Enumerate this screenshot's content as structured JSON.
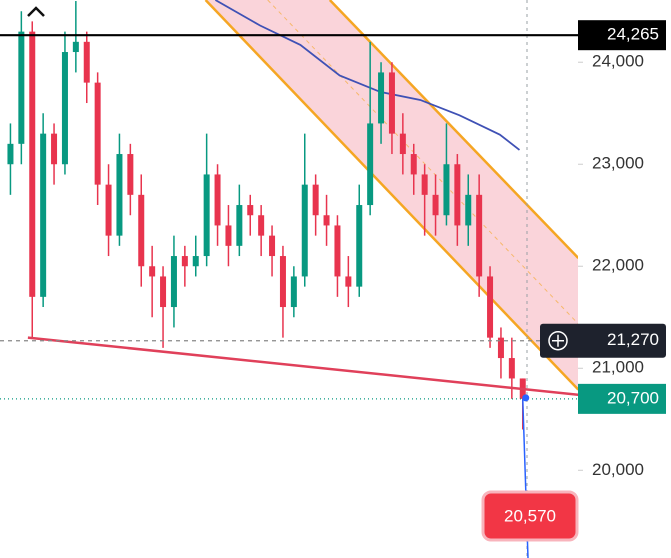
{
  "chart_data": {
    "type": "candlestick",
    "ylim": [
      19140,
      24610
    ],
    "yticks": [
      {
        "value": 20000,
        "label": "20,000"
      },
      {
        "value": 21000,
        "label": "21,000"
      },
      {
        "value": 22000,
        "label": "22,000"
      },
      {
        "value": 23000,
        "label": "23,000"
      },
      {
        "value": 24000,
        "label": "24,000"
      }
    ],
    "up_color": "#089981",
    "down_color": "#e8344e",
    "open": [
      23000,
      23200,
      24300,
      21700,
      23300,
      23000,
      24100,
      24200,
      23800,
      22800,
      22300,
      23100,
      22700,
      22000,
      21900,
      21600,
      22100,
      22000,
      22100,
      22900,
      22400,
      22200,
      22600,
      22500,
      22300,
      22100,
      21600,
      21900,
      22800,
      22500,
      22400,
      21900,
      21800,
      22600,
      23400,
      23900,
      23300,
      23100,
      22900,
      22700,
      22500,
      23000,
      22400,
      22700,
      21900,
      21300,
      21100,
      20900
    ],
    "high": [
      23400,
      24500,
      24400,
      23500,
      23400,
      24300,
      24600,
      24300,
      23900,
      23000,
      23300,
      23200,
      22900,
      22200,
      22000,
      22300,
      22200,
      22300,
      23300,
      23000,
      22600,
      22800,
      22700,
      22600,
      22400,
      22200,
      22000,
      23300,
      22900,
      22700,
      22500,
      22100,
      22800,
      24200,
      24000,
      24000,
      23500,
      23200,
      23000,
      22900,
      23400,
      23100,
      22900,
      22900,
      22000,
      21400,
      21300,
      20900
    ],
    "low": [
      22700,
      23000,
      21300,
      21600,
      22800,
      22900,
      23900,
      23600,
      22600,
      22100,
      22200,
      22500,
      21800,
      21500,
      21200,
      21400,
      21800,
      21900,
      22000,
      22200,
      22000,
      22100,
      22300,
      22100,
      21900,
      21300,
      21500,
      21800,
      22300,
      22200,
      21700,
      21600,
      21700,
      22500,
      23200,
      23100,
      22900,
      22700,
      22300,
      22300,
      22400,
      22200,
      22200,
      21700,
      21200,
      20900,
      20700,
      20400
    ],
    "close": [
      23200,
      24300,
      21700,
      23300,
      23000,
      24100,
      24200,
      23800,
      22800,
      22300,
      23100,
      22700,
      22000,
      21900,
      21600,
      22100,
      22000,
      22100,
      22900,
      22400,
      22200,
      22600,
      22500,
      22300,
      22100,
      21600,
      21900,
      22800,
      22500,
      22400,
      21900,
      21800,
      22600,
      23400,
      23900,
      23300,
      23100,
      22900,
      22700,
      22500,
      23000,
      22400,
      22700,
      21900,
      21300,
      21100,
      20900,
      20700
    ],
    "channel": {
      "color": "#f5a623",
      "fill": "#f9cdd3",
      "upper": {
        "x": [
          29.3,
          52.1
        ],
        "y": [
          24610,
          22080
        ]
      },
      "lower": {
        "x": [
          17.9,
          52.1
        ],
        "y": [
          24610,
          20790
        ]
      }
    },
    "moving_average": {
      "color": "#3f51b5",
      "x": [
        18.8,
        22.9,
        26.6,
        30.2,
        33.9,
        37.6,
        41.2,
        44.9,
        46.7
      ],
      "y": [
        24610,
        24360,
        24170,
        23870,
        23710,
        23630,
        23480,
        23290,
        23140
      ]
    },
    "support_line": {
      "color": "#e0405a",
      "x": [
        1.6,
        52.1
      ],
      "y": [
        21300,
        20740
      ]
    },
    "price_lines": [
      {
        "value": 24265,
        "label": "24,265",
        "color": "#000000",
        "style": "solid"
      },
      {
        "value": 21270,
        "label": "21,270",
        "color": "#1e222d",
        "style": "dashed"
      },
      {
        "value": 20700,
        "label": "20,700",
        "color": "#089981",
        "style": "dotted"
      }
    ],
    "target": {
      "value": 20570,
      "label": "20,570",
      "color": "#f23645"
    }
  }
}
